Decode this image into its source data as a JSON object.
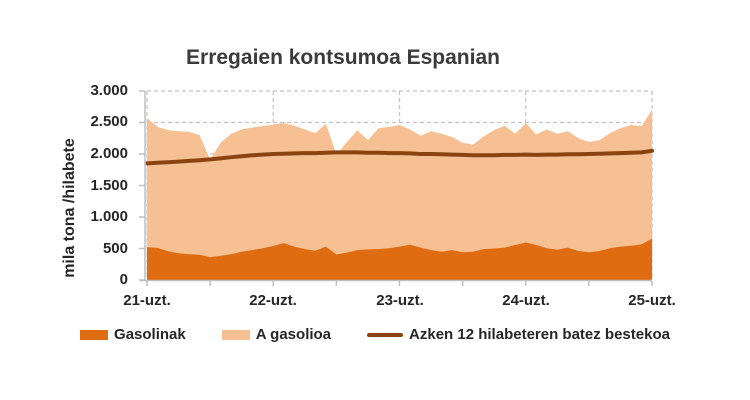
{
  "title": "Erregaien kontsumoa Espanian",
  "colors": {
    "gasolinak": "#E06C12",
    "a_gasolioa": "#F6C092",
    "average_line": "#8A4411",
    "gridline": "#C3C3C3",
    "axis": "#BFBFBF",
    "tick_text": "#262626",
    "title_text": "#3B3B3B",
    "background": "#FFFFFF"
  },
  "chart_data": {
    "type": "area",
    "title": "Erregaien kontsumoa Espanian",
    "xlabel": "",
    "ylabel": "mila tona /hilabete",
    "ylim": [
      0,
      3000
    ],
    "ytick_labels": [
      "0",
      "500",
      "1.000",
      "1.500",
      "2.000",
      "2.500",
      "3.000"
    ],
    "xtick_labels": [
      "21-uzt.",
      "22-uzt.",
      "23-uzt.",
      "24-uzt.",
      "25-uzt."
    ],
    "grid": "dashed",
    "legend_position": "bottom",
    "stacked": true,
    "x": [
      "2021-07",
      "2021-08",
      "2021-09",
      "2021-10",
      "2021-11",
      "2021-12",
      "2022-01",
      "2022-02",
      "2022-03",
      "2022-04",
      "2022-05",
      "2022-06",
      "2022-07",
      "2022-08",
      "2022-09",
      "2022-10",
      "2022-11",
      "2022-12",
      "2023-01",
      "2023-02",
      "2023-03",
      "2023-04",
      "2023-05",
      "2023-06",
      "2023-07",
      "2023-08",
      "2023-09",
      "2023-10",
      "2023-11",
      "2023-12",
      "2024-01",
      "2024-02",
      "2024-03",
      "2024-04",
      "2024-05",
      "2024-06",
      "2024-07",
      "2024-08",
      "2024-09",
      "2024-10",
      "2024-11",
      "2024-12",
      "2025-01",
      "2025-02",
      "2025-03",
      "2025-04",
      "2025-05",
      "2025-06",
      "2025-07"
    ],
    "series": [
      {
        "name": "Gasolinak",
        "type": "area",
        "color": "#E06C12",
        "values": [
          520,
          510,
          455,
          425,
          410,
          400,
          360,
          385,
          410,
          450,
          475,
          505,
          540,
          585,
          530,
          490,
          465,
          530,
          405,
          435,
          475,
          485,
          490,
          505,
          530,
          560,
          515,
          475,
          450,
          475,
          440,
          450,
          490,
          500,
          515,
          555,
          595,
          555,
          505,
          480,
          515,
          460,
          440,
          460,
          505,
          530,
          545,
          565,
          655
        ]
      },
      {
        "name": "A gasolioa",
        "type": "area",
        "color": "#F6C092",
        "values": [
          2050,
          1920,
          1925,
          1935,
          1940,
          1900,
          1550,
          1795,
          1910,
          1940,
          1945,
          1935,
          1930,
          1905,
          1920,
          1900,
          1865,
          1950,
          1585,
          1755,
          1905,
          1735,
          1920,
          1925,
          1930,
          1830,
          1775,
          1885,
          1870,
          1795,
          1740,
          1700,
          1790,
          1880,
          1935,
          1765,
          1895,
          1755,
          1885,
          1840,
          1845,
          1790,
          1750,
          1760,
          1825,
          1880,
          1915,
          1875,
          2045
        ]
      },
      {
        "name": "Azken 12 hilabeteren batez bestekoa",
        "type": "line",
        "color": "#8A4411",
        "values": [
          1850,
          1860,
          1870,
          1880,
          1890,
          1900,
          1915,
          1930,
          1950,
          1965,
          1980,
          1990,
          2000,
          2005,
          2010,
          2015,
          2015,
          2020,
          2025,
          2025,
          2025,
          2020,
          2020,
          2015,
          2015,
          2010,
          2000,
          2000,
          1995,
          1990,
          1985,
          1980,
          1980,
          1980,
          1985,
          1985,
          1990,
          1985,
          1990,
          1990,
          1995,
          1995,
          2000,
          2005,
          2010,
          2015,
          2020,
          2025,
          2050
        ]
      }
    ]
  }
}
